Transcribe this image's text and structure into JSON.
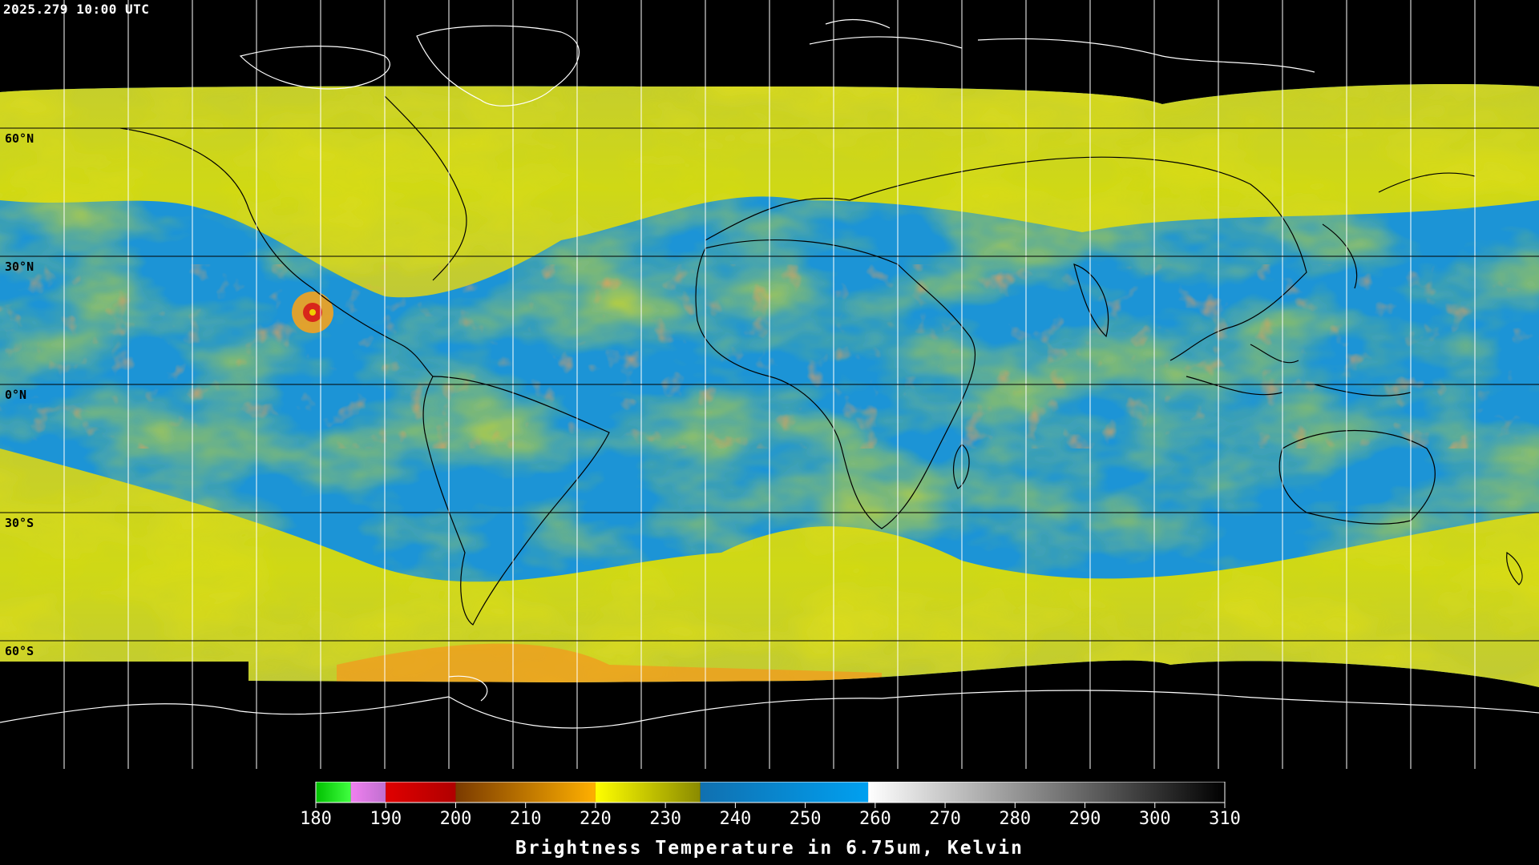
{
  "timestamp": "2025.279 10:00 UTC",
  "projection": "equirectangular global",
  "latitude_labels": [
    "60°N",
    "30°N",
    "0°N",
    "30°S",
    "60°S"
  ],
  "latitude_values": [
    60,
    30,
    0,
    -30,
    -60
  ],
  "longitude_grid_step_deg": 15,
  "colors": {
    "background": "#000000",
    "dry_yellow": "#e6e600",
    "moist_blue": "#1e90d6",
    "grid": "#000000",
    "coastline_land_polar": "#ffffff",
    "coastline_interior": "#000000"
  },
  "colorbar": {
    "title": "Brightness Temperature in 6.75um, Kelvin",
    "min": 180,
    "max": 310,
    "tick_values": [
      180,
      190,
      200,
      210,
      220,
      230,
      240,
      250,
      260,
      270,
      280,
      290,
      300,
      310
    ],
    "tick_labels": [
      "180",
      "190",
      "200",
      "210",
      "220",
      "230",
      "240",
      "250",
      "260",
      "270",
      "280",
      "290",
      "300",
      "310"
    ],
    "segments": [
      {
        "from": 180,
        "to": 185,
        "color_start": "#00c000",
        "color_end": "#40ff40"
      },
      {
        "from": 185,
        "to": 190,
        "color_start": "#f080f0",
        "color_end": "#c070d0"
      },
      {
        "from": 190,
        "to": 200,
        "color_start": "#e00000",
        "color_end": "#b00000"
      },
      {
        "from": 200,
        "to": 220,
        "color_start": "#7a3a00",
        "color_end": "#ffb000"
      },
      {
        "from": 220,
        "to": 235,
        "color_start": "#ffff00",
        "color_end": "#8a8a00"
      },
      {
        "from": 235,
        "to": 259,
        "color_start": "#1070b0",
        "color_end": "#00a0f0"
      },
      {
        "from": 259,
        "to": 310,
        "color_start": "#ffffff",
        "color_end": "#000000"
      }
    ]
  }
}
